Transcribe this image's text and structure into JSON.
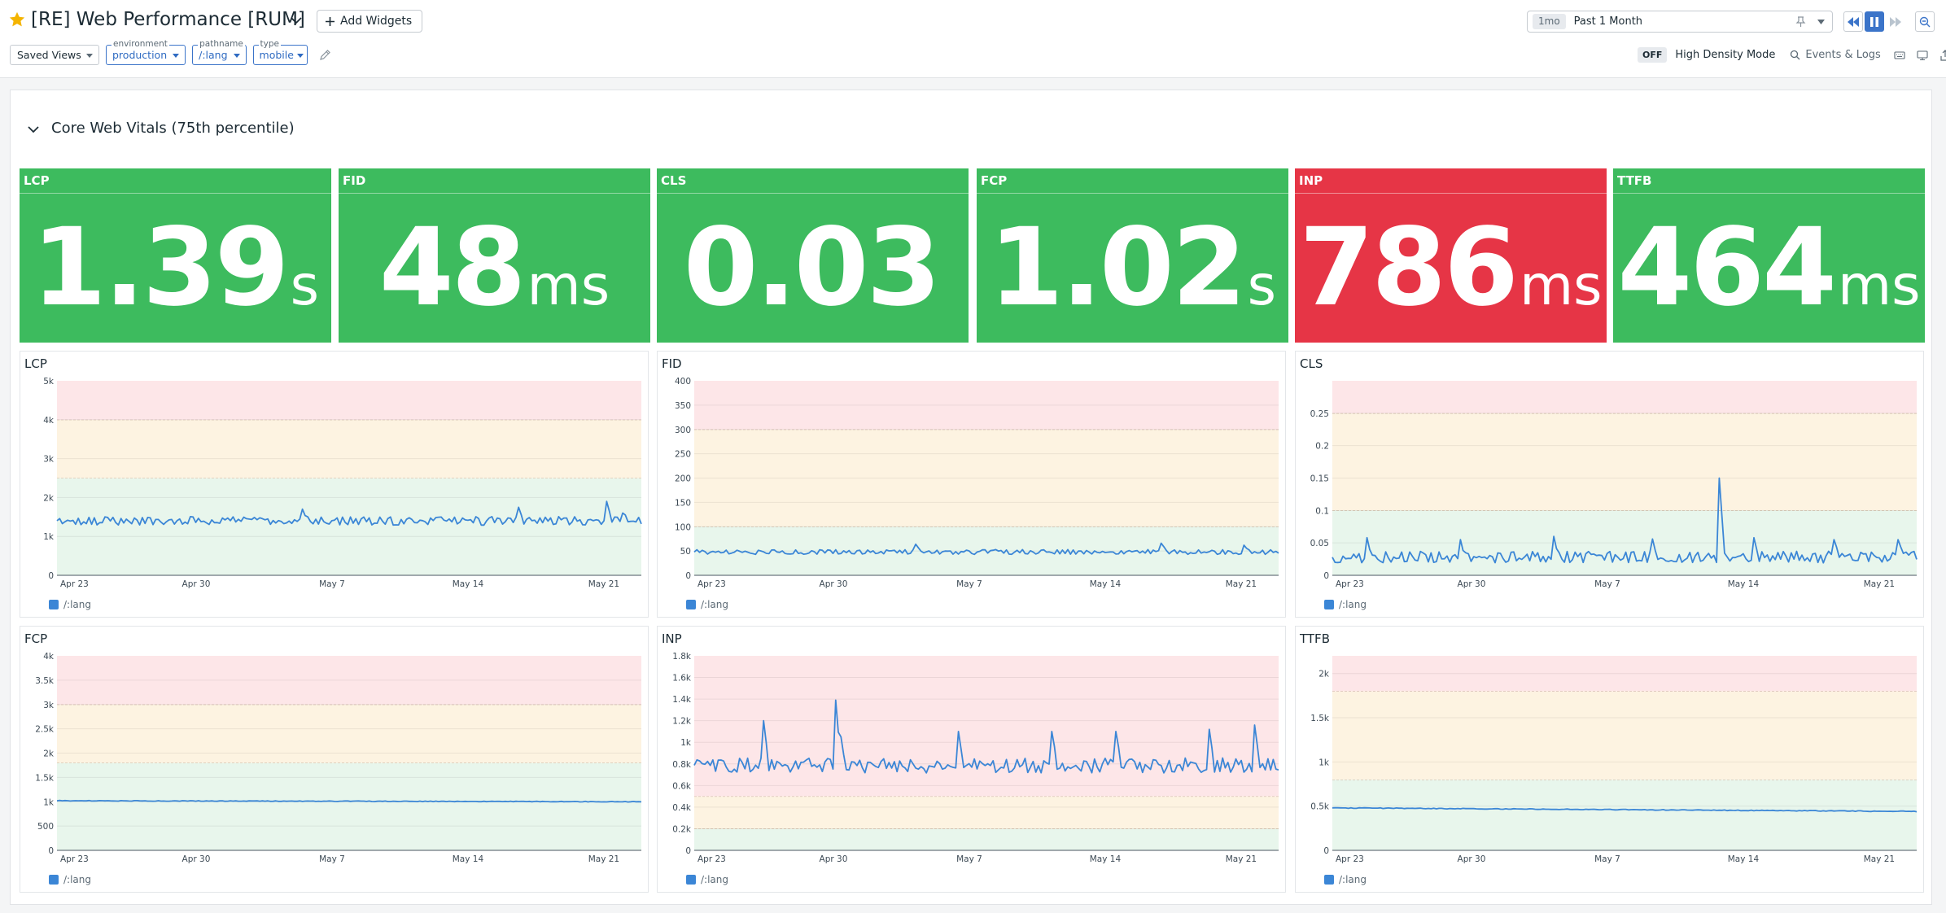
{
  "header": {
    "title": "[RE] Web Performance [RUM]",
    "add_widgets_label": "Add Widgets"
  },
  "time": {
    "badge": "1mo",
    "value": "Past 1 Month"
  },
  "filters": {
    "saved_views": "Saved Views",
    "vars": [
      {
        "name": "environment",
        "value": "production"
      },
      {
        "name": "pathname",
        "value": "/:lang"
      },
      {
        "name": "type",
        "value": "mobile"
      }
    ]
  },
  "tools": {
    "density_state": "OFF",
    "density_label": "High Density Mode",
    "events_label": "Events & Logs"
  },
  "section": {
    "title": "Core Web Vitals (75th percentile)"
  },
  "query_values": [
    {
      "title": "LCP",
      "value": "1.39",
      "unit": "s",
      "status": "good",
      "color": "#3dbb5e"
    },
    {
      "title": "FID",
      "value": "48",
      "unit": "ms",
      "status": "good",
      "color": "#3dbb5e"
    },
    {
      "title": "CLS",
      "value": "0.03",
      "unit": "",
      "status": "good",
      "color": "#3dbb5e"
    },
    {
      "title": "FCP",
      "value": "1.02",
      "unit": "s",
      "status": "good",
      "color": "#3dbb5e"
    },
    {
      "title": "INP",
      "value": "786",
      "unit": "ms",
      "status": "poor",
      "color": "#e63546"
    },
    {
      "title": "TTFB",
      "value": "464",
      "unit": "ms",
      "status": "good",
      "color": "#3dbb5e"
    }
  ],
  "colors": {
    "good_band": "#e8f6ec",
    "needs_improvement_band": "#fdf3e1",
    "poor_band": "#fde6e8",
    "line": "#3b86d6"
  },
  "chart_data": [
    {
      "type": "line",
      "title": "LCP",
      "x_ticks": [
        "Apr 23",
        "Apr 30",
        "May 7",
        "May 14",
        "May 21"
      ],
      "y_ticks": [
        "0",
        "1k",
        "2k",
        "3k",
        "4k",
        "5k"
      ],
      "y_tick_values": [
        0,
        1000,
        2000,
        3000,
        4000,
        5000
      ],
      "ylim": [
        0,
        5000
      ],
      "bands": [
        {
          "from": 0,
          "to": 2500,
          "level": "good"
        },
        {
          "from": 2500,
          "to": 4000,
          "level": "needs_improvement"
        },
        {
          "from": 4000,
          "to": 5000,
          "level": "poor"
        }
      ],
      "series": [
        {
          "name": "/:lang",
          "base": 1400,
          "noise": 110,
          "spikes": [
            [
              0.42,
              1700
            ],
            [
              0.79,
              1750
            ],
            [
              0.94,
              1900
            ],
            [
              0.97,
              1600
            ]
          ],
          "trend": 0
        }
      ]
    },
    {
      "type": "line",
      "title": "FID",
      "x_ticks": [
        "Apr 23",
        "Apr 30",
        "May 7",
        "May 14",
        "May 21"
      ],
      "y_ticks": [
        "0",
        "50",
        "100",
        "150",
        "200",
        "250",
        "300",
        "350",
        "400"
      ],
      "y_tick_values": [
        0,
        50,
        100,
        150,
        200,
        250,
        300,
        350,
        400
      ],
      "ylim": [
        0,
        400
      ],
      "bands": [
        {
          "from": 0,
          "to": 100,
          "level": "good"
        },
        {
          "from": 100,
          "to": 300,
          "level": "needs_improvement"
        },
        {
          "from": 300,
          "to": 400,
          "level": "poor"
        }
      ],
      "series": [
        {
          "name": "/:lang",
          "base": 48,
          "noise": 5,
          "spikes": [
            [
              0.38,
              64
            ],
            [
              0.8,
              66
            ],
            [
              0.94,
              62
            ]
          ],
          "trend": 0
        }
      ]
    },
    {
      "type": "line",
      "title": "CLS",
      "x_ticks": [
        "Apr 23",
        "Apr 30",
        "May 7",
        "May 14",
        "May 21"
      ],
      "y_ticks": [
        "0",
        "0.05",
        "0.1",
        "0.15",
        "0.2",
        "0.25"
      ],
      "y_tick_values": [
        0,
        0.05,
        0.1,
        0.15,
        0.2,
        0.25
      ],
      "ylim": [
        0,
        0.3
      ],
      "bands": [
        {
          "from": 0,
          "to": 0.1,
          "level": "good"
        },
        {
          "from": 0.1,
          "to": 0.25,
          "level": "needs_improvement"
        },
        {
          "from": 0.25,
          "to": 0.3,
          "level": "poor"
        }
      ],
      "series": [
        {
          "name": "/:lang",
          "base": 0.028,
          "noise": 0.009,
          "spikes": [
            [
              0.66,
              0.15
            ],
            [
              0.06,
              0.058
            ],
            [
              0.22,
              0.055
            ],
            [
              0.38,
              0.06
            ],
            [
              0.55,
              0.056
            ],
            [
              0.72,
              0.058
            ],
            [
              0.86,
              0.055
            ],
            [
              0.97,
              0.055
            ]
          ],
          "trend": 0
        }
      ]
    },
    {
      "type": "line",
      "title": "FCP",
      "x_ticks": [
        "Apr 23",
        "Apr 30",
        "May 7",
        "May 14",
        "May 21"
      ],
      "y_ticks": [
        "0",
        "500",
        "1k",
        "1.5k",
        "2k",
        "2.5k",
        "3k",
        "3.5k",
        "4k"
      ],
      "y_tick_values": [
        0,
        500,
        1000,
        1500,
        2000,
        2500,
        3000,
        3500,
        4000
      ],
      "ylim": [
        0,
        4000
      ],
      "bands": [
        {
          "from": 0,
          "to": 1800,
          "level": "good"
        },
        {
          "from": 1800,
          "to": 3000,
          "level": "needs_improvement"
        },
        {
          "from": 3000,
          "to": 4000,
          "level": "poor"
        }
      ],
      "series": [
        {
          "name": "/:lang",
          "base": 1020,
          "noise": 6,
          "spikes": [],
          "trend": -20
        }
      ]
    },
    {
      "type": "line",
      "title": "INP",
      "x_ticks": [
        "Apr 23",
        "Apr 30",
        "May 7",
        "May 14",
        "May 21"
      ],
      "y_ticks": [
        "0",
        "0.2k",
        "0.4k",
        "0.6k",
        "0.8k",
        "1k",
        "1.2k",
        "1.4k",
        "1.6k",
        "1.8k"
      ],
      "y_tick_values": [
        0,
        200,
        400,
        600,
        800,
        1000,
        1200,
        1400,
        1600,
        1800
      ],
      "ylim": [
        0,
        1800
      ],
      "bands": [
        {
          "from": 0,
          "to": 200,
          "level": "good"
        },
        {
          "from": 200,
          "to": 500,
          "level": "needs_improvement"
        },
        {
          "from": 500,
          "to": 1800,
          "level": "poor"
        }
      ],
      "series": [
        {
          "name": "/:lang",
          "base": 786,
          "noise": 70,
          "spikes": [
            [
              0.12,
              1200
            ],
            [
              0.24,
              1390
            ],
            [
              0.25,
              1050
            ],
            [
              0.45,
              1100
            ],
            [
              0.61,
              1100
            ],
            [
              0.72,
              1100
            ],
            [
              0.88,
              1120
            ],
            [
              0.96,
              1160
            ]
          ],
          "trend": 0
        }
      ]
    },
    {
      "type": "line",
      "title": "TTFB",
      "x_ticks": [
        "Apr 23",
        "Apr 30",
        "May 7",
        "May 14",
        "May 21"
      ],
      "y_ticks": [
        "0",
        "0.5k",
        "1k",
        "1.5k",
        "2k"
      ],
      "y_tick_values": [
        0,
        500,
        1000,
        1500,
        2000
      ],
      "ylim": [
        0,
        2200
      ],
      "bands": [
        {
          "from": 0,
          "to": 800,
          "level": "good"
        },
        {
          "from": 800,
          "to": 1800,
          "level": "needs_improvement"
        },
        {
          "from": 1800,
          "to": 2200,
          "level": "poor"
        }
      ],
      "series": [
        {
          "name": "/:lang",
          "base": 480,
          "noise": 4,
          "spikes": [],
          "trend": -40
        }
      ]
    }
  ]
}
